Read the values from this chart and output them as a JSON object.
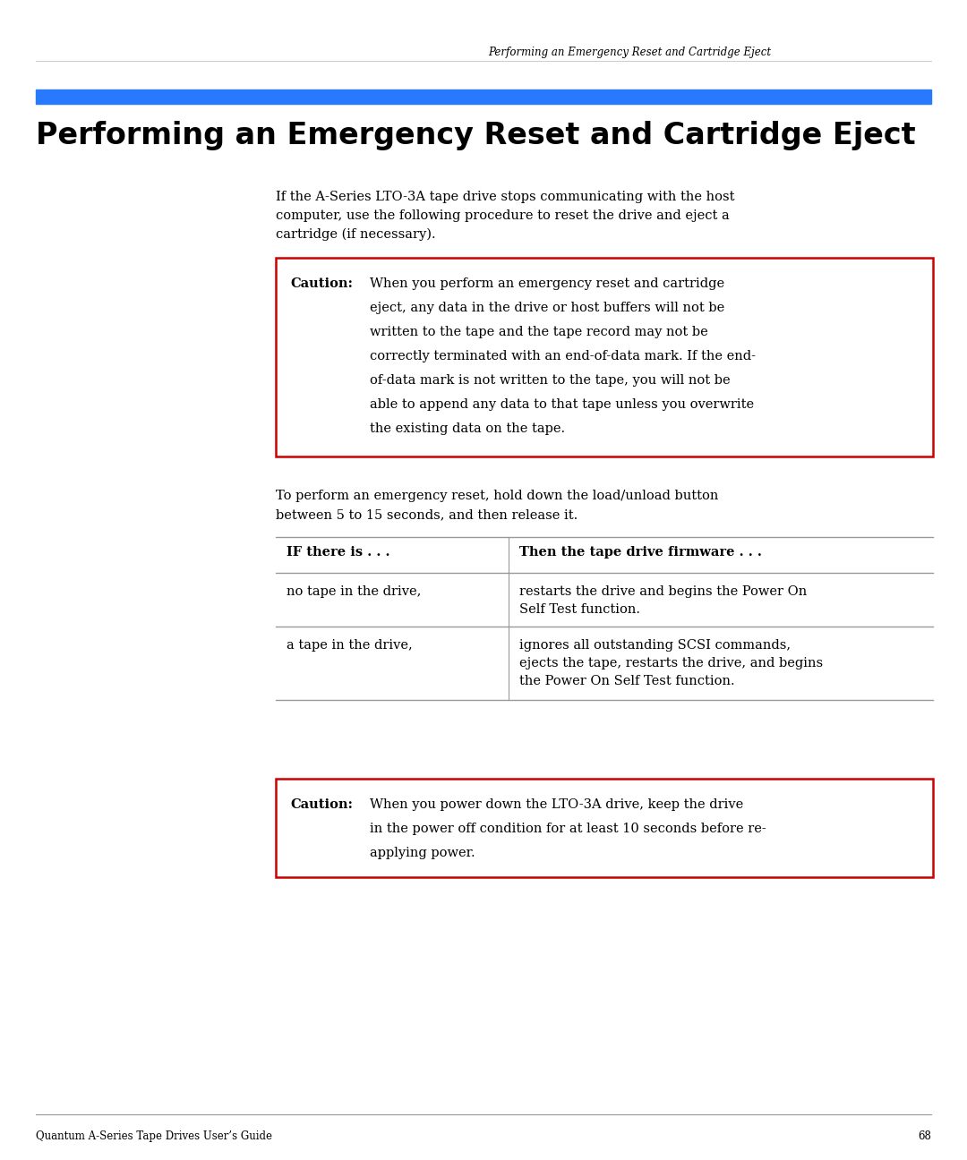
{
  "page_header": "Performing an Emergency Reset and Cartridge Eject",
  "page_number": "68",
  "footer_left": "Quantum A-Series Tape Drives User’s Guide",
  "blue_bar_color": "#2979FF",
  "section_title": "Performing an Emergency Reset and Cartridge Eject",
  "caution1_label": "Caution:",
  "caution1_lines": [
    "When you perform an emergency reset and cartridge",
    "eject, any data in the drive or host buffers will not be",
    "written to the tape and the tape record may not be",
    "correctly terminated with an end-of-data mark. If the end-",
    "of-data mark is not written to the tape, you will not be",
    "able to append any data to that tape unless you overwrite",
    "the existing data on the tape."
  ],
  "intro_lines": [
    "If the A-Series LTO-3A tape drive stops communicating with the host",
    "computer, use the following procedure to reset the drive and eject a",
    "cartridge (if necessary)."
  ],
  "middle_lines": [
    "To perform an emergency reset, hold down the load/unload button",
    "between 5 to 15 seconds, and then release it."
  ],
  "table_col1_header": "IF there is . . .",
  "table_col2_header": "Then the tape drive firmware . . .",
  "table_row1_col1": "no tape in the drive,",
  "table_row1_col2": [
    "restarts the drive and begins the Power On",
    "Self Test function."
  ],
  "table_row2_col1": "a tape in the drive,",
  "table_row2_col2": [
    "ignores all outstanding SCSI commands,",
    "ejects the tape, restarts the drive, and begins",
    "the Power On Self Test function."
  ],
  "caution2_label": "Caution:",
  "caution2_lines": [
    "When you power down the LTO-3A drive, keep the drive",
    "in the power off condition for at least 10 seconds before re-",
    "applying power."
  ],
  "bg_color": "#ffffff",
  "text_color": "#000000",
  "caution_border_color": "#cc0000",
  "table_line_color": "#999999",
  "header_line_color": "#cccccc"
}
